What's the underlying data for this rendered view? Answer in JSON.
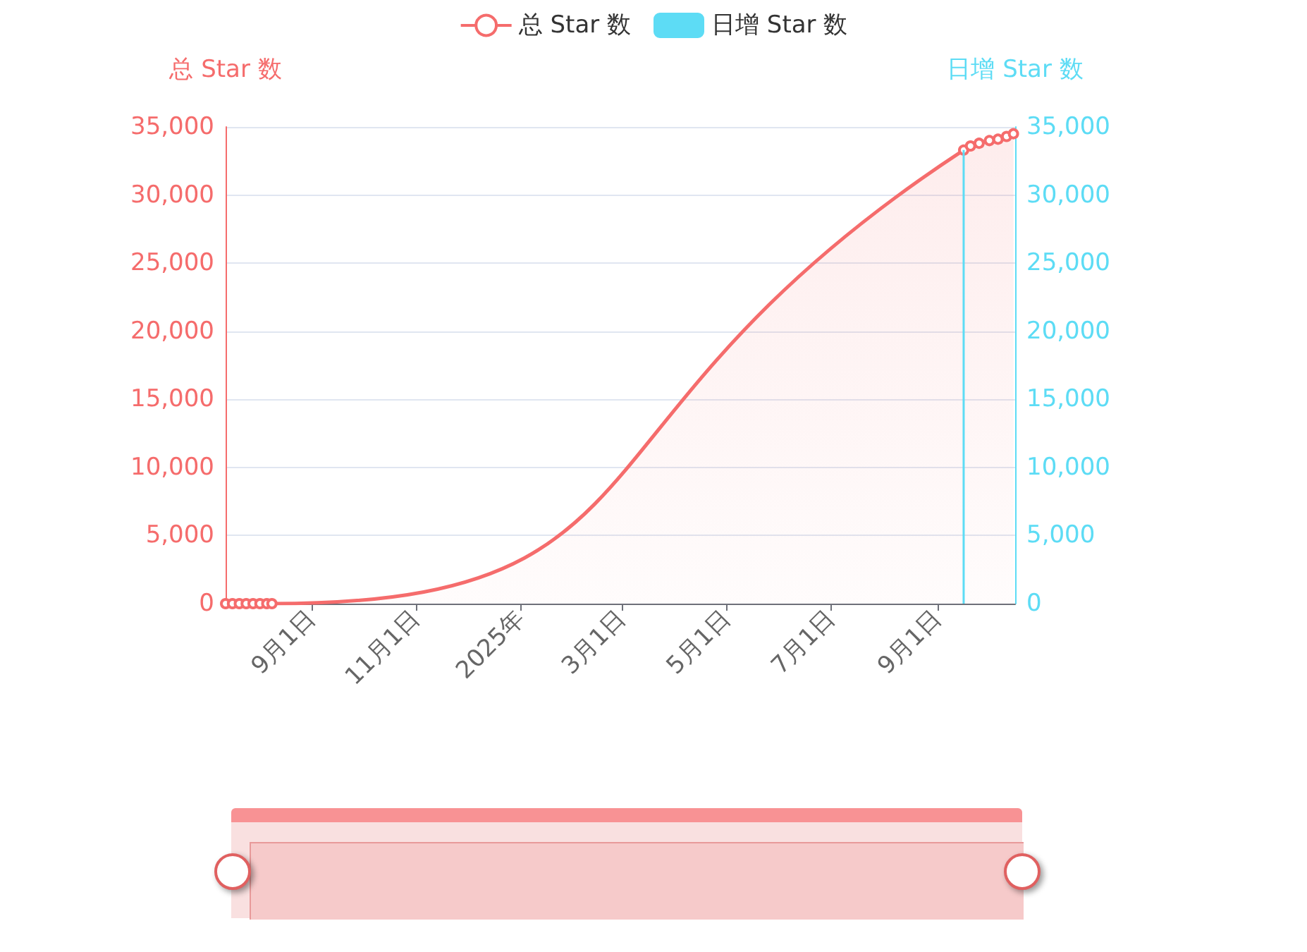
{
  "chart_data": {
    "type": "area",
    "ylabel": "总 Star 数",
    "y2label": "日增 Star 数",
    "xlim": [
      "2024-07-13",
      "2025-10-16"
    ],
    "xticks": [
      {
        "value": "2024-09-01",
        "label": "9月1日"
      },
      {
        "value": "2024-11-01",
        "label": "11月1日"
      },
      {
        "value": "2025-01-01",
        "label": "2025年"
      },
      {
        "value": "2025-03-01",
        "label": "3月1日"
      },
      {
        "value": "2025-05-01",
        "label": "5月1日"
      },
      {
        "value": "2025-07-01",
        "label": "7月1日"
      },
      {
        "value": "2025-09-01",
        "label": "9月1日"
      }
    ],
    "ylim": [
      0,
      35000
    ],
    "yticks": [
      0,
      {
        "value": 5000,
        "label": "5,000"
      },
      {
        "value": 10000,
        "label": "10,000"
      },
      {
        "value": 15000,
        "label": "15,000"
      },
      {
        "value": 20000,
        "label": "20,000"
      },
      {
        "value": 25000,
        "label": "25,000"
      },
      {
        "value": 30000,
        "label": "30,000"
      },
      {
        "value": 35000,
        "label": "35,000"
      }
    ],
    "y2lim": [
      0,
      35000
    ],
    "y2ticks": [
      0,
      {
        "value": 5000,
        "label": "5,000"
      },
      {
        "value": 10000,
        "label": "10,000"
      },
      {
        "value": 15000,
        "label": "15,000"
      },
      {
        "value": 20000,
        "label": "20,000"
      },
      {
        "value": 25000,
        "label": "25,000"
      },
      {
        "value": 30000,
        "label": "30,000"
      },
      {
        "value": 35000,
        "label": "35,000"
      }
    ],
    "series": [
      {
        "name": "总 Star 数",
        "color": "#f56c6c",
        "x": [
          "2024-07-13",
          "2024-07-17",
          "2024-07-21",
          "2024-07-25",
          "2024-07-29",
          "2024-08-02",
          "2024-08-06",
          "2024-08-09",
          "2025-09-16",
          "2025-09-20",
          "2025-09-25",
          "2025-10-01",
          "2025-10-06",
          "2025-10-11",
          "2025-10-15"
        ],
        "values": [
          0,
          0,
          0,
          0,
          0,
          0,
          0,
          0,
          33300,
          33600,
          33800,
          34000,
          34100,
          34300,
          34500
        ]
      },
      {
        "name": "日增 Star 数",
        "type": "bar",
        "axis": "y2",
        "color": "#5ddcf5",
        "x": [
          "2025-09-16"
        ],
        "values": [
          33300
        ]
      }
    ],
    "grid": "y",
    "legend": "top",
    "marker": "circle"
  }
}
